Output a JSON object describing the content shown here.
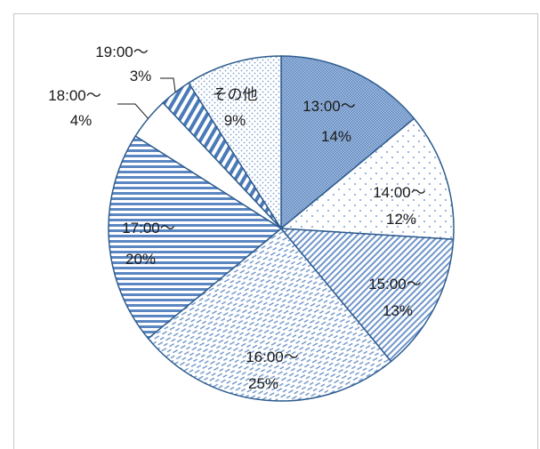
{
  "chart_data": {
    "type": "pie",
    "title": "",
    "slices": [
      {
        "label": "13:00～",
        "value": 14,
        "pct_label": "14%",
        "pattern": "grid"
      },
      {
        "label": "14:00～",
        "value": 12,
        "pct_label": "12%",
        "pattern": "dots-sparse"
      },
      {
        "label": "15:00～",
        "value": 13,
        "pct_label": "13%",
        "pattern": "diag-fine"
      },
      {
        "label": "16:00～",
        "value": 25,
        "pct_label": "25%",
        "pattern": "diag-dash"
      },
      {
        "label": "17:00～",
        "value": 20,
        "pct_label": "20%",
        "pattern": "horiz"
      },
      {
        "label": "18:00～",
        "value": 4,
        "pct_label": "4%",
        "pattern": "white"
      },
      {
        "label": "19:00～",
        "value": 3,
        "pct_label": "3%",
        "pattern": "diag-wide"
      },
      {
        "label": "その他",
        "value": 9,
        "pct_label": "9%",
        "pattern": "dots-dense"
      }
    ],
    "colors": {
      "stroke": "#2e5c8f",
      "fill": "#4a7ab8",
      "text": "#1a1a1a"
    }
  }
}
